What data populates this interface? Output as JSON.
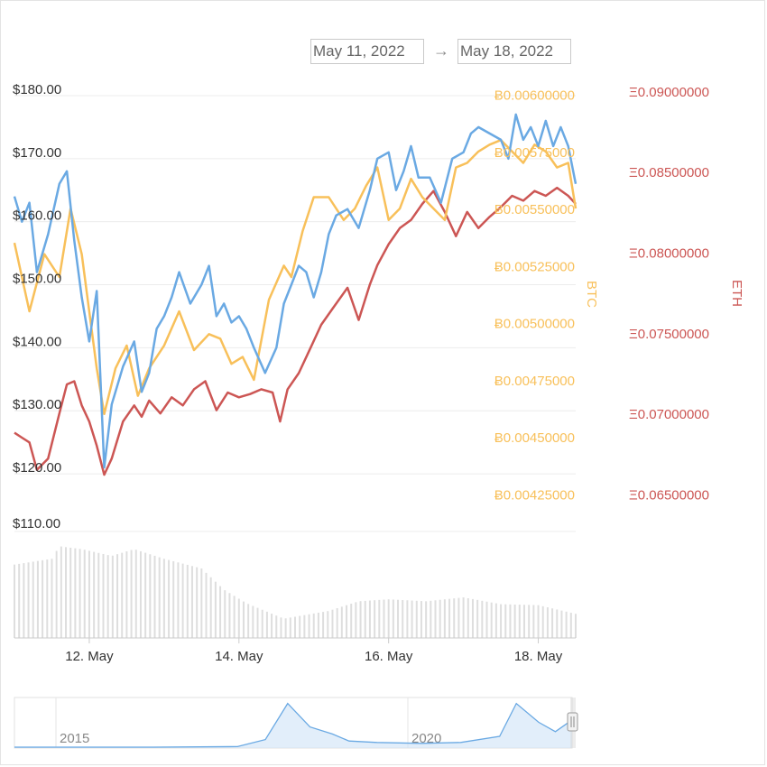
{
  "date_range": {
    "from": "May 11, 2022",
    "arrow": "→",
    "to": "May 18, 2022"
  },
  "colors": {
    "usd": "#6aa9e3",
    "btc": "#f8c05a",
    "eth": "#cc5654",
    "volume": "#dedede",
    "nav": "#cfe3f6",
    "grid": "#ececec",
    "text": "#333333"
  },
  "chart_data": {
    "type": "line",
    "title": "",
    "x": {
      "start": "2022-05-11 00:00",
      "end": "2022-05-18 12:00",
      "tick_labels": [
        "12. May",
        "14. May",
        "16. May",
        "18. May"
      ],
      "tick_days": [
        1,
        3,
        5,
        7
      ]
    },
    "axes": {
      "usd": {
        "title": "",
        "ylim": [
          115,
          182
        ],
        "ticks": [
          120,
          130,
          140,
          150,
          160,
          170,
          180
        ],
        "tick_labels": [
          "$120.00",
          "$130.00",
          "$140.00",
          "$150.00",
          "$160.00",
          "$170.00",
          "$180.00"
        ]
      },
      "btc": {
        "title": "BTC",
        "ylim": [
          0.0042,
          0.00605
        ],
        "ticks": [
          0.00425,
          0.0045,
          0.00475,
          0.005,
          0.00525,
          0.0055,
          0.00575,
          0.006
        ],
        "tick_labels": [
          "Ƀ0.00425000",
          "Ƀ0.00450000",
          "Ƀ0.00475000",
          "Ƀ0.00500000",
          "Ƀ0.00525000",
          "Ƀ0.00550000",
          "Ƀ0.00575000",
          "Ƀ0.00600000"
        ]
      },
      "eth": {
        "title": "ETH",
        "ylim": [
          0.0643,
          0.0905
        ],
        "ticks": [
          0.065,
          0.07,
          0.075,
          0.08,
          0.085,
          0.09
        ],
        "tick_labels": [
          "Ξ0.06500000",
          "Ξ0.07000000",
          "Ξ0.07500000",
          "Ξ0.08000000",
          "Ξ0.08500000",
          "Ξ0.09000000"
        ]
      }
    },
    "series": [
      {
        "name": "USD",
        "axis": "usd",
        "x": [
          0,
          0.1,
          0.2,
          0.3,
          0.45,
          0.6,
          0.7,
          0.8,
          0.9,
          1.0,
          1.1,
          1.2,
          1.3,
          1.45,
          1.6,
          1.7,
          1.8,
          1.9,
          2.0,
          2.1,
          2.2,
          2.35,
          2.5,
          2.6,
          2.7,
          2.8,
          2.9,
          3.0,
          3.1,
          3.2,
          3.35,
          3.5,
          3.6,
          3.7,
          3.8,
          3.9,
          4.0,
          4.1,
          4.2,
          4.3,
          4.45,
          4.6,
          4.75,
          4.85,
          5.0,
          5.1,
          5.2,
          5.3,
          5.4,
          5.55,
          5.7,
          5.85,
          6.0,
          6.1,
          6.2,
          6.35,
          6.5,
          6.6,
          6.7,
          6.8,
          6.9,
          7.0,
          7.1,
          7.2,
          7.3,
          7.4,
          7.5
        ],
        "values": [
          164,
          160,
          163,
          152,
          158,
          166,
          168,
          157,
          148,
          141,
          149,
          121,
          131,
          137,
          141,
          133,
          136,
          143,
          145,
          148,
          152,
          147,
          150,
          153,
          145,
          147,
          144,
          145,
          143,
          140,
          136,
          140,
          147,
          150,
          153,
          152,
          148,
          152,
          158,
          161,
          162,
          159,
          165,
          170,
          171,
          165,
          168,
          172,
          167,
          167,
          163,
          170,
          171,
          174,
          175,
          174,
          173,
          170,
          177,
          173,
          175,
          172,
          176,
          172,
          175,
          172,
          166
        ]
      },
      {
        "name": "BTC",
        "axis": "btc",
        "x": [
          0,
          0.2,
          0.4,
          0.6,
          0.75,
          0.9,
          1.0,
          1.1,
          1.2,
          1.35,
          1.5,
          1.65,
          1.8,
          2.0,
          2.2,
          2.4,
          2.6,
          2.75,
          2.9,
          3.05,
          3.2,
          3.4,
          3.6,
          3.7,
          3.85,
          4.0,
          4.2,
          4.4,
          4.55,
          4.7,
          4.85,
          5.0,
          5.15,
          5.3,
          5.45,
          5.6,
          5.75,
          5.9,
          6.05,
          6.2,
          6.35,
          6.5,
          6.65,
          6.8,
          6.95,
          7.1,
          7.25,
          7.4,
          7.5
        ],
        "values": [
          0.00535,
          0.00505,
          0.0053,
          0.0052,
          0.0055,
          0.0053,
          0.00505,
          0.0048,
          0.0046,
          0.0048,
          0.0049,
          0.00468,
          0.0048,
          0.0049,
          0.00505,
          0.00488,
          0.00495,
          0.00493,
          0.00482,
          0.00485,
          0.00475,
          0.0051,
          0.00525,
          0.0052,
          0.0054,
          0.00555,
          0.00555,
          0.00545,
          0.0055,
          0.0056,
          0.00568,
          0.00545,
          0.0055,
          0.00563,
          0.00555,
          0.0055,
          0.00545,
          0.00568,
          0.0057,
          0.00575,
          0.00578,
          0.0058,
          0.00575,
          0.0057,
          0.00578,
          0.00575,
          0.00568,
          0.0057,
          0.0055
        ]
      },
      {
        "name": "ETH",
        "axis": "eth",
        "x": [
          0,
          0.1,
          0.2,
          0.3,
          0.45,
          0.6,
          0.7,
          0.8,
          0.9,
          1.0,
          1.1,
          1.2,
          1.3,
          1.45,
          1.6,
          1.7,
          1.8,
          1.95,
          2.1,
          2.25,
          2.4,
          2.55,
          2.7,
          2.85,
          3.0,
          3.15,
          3.3,
          3.45,
          3.55,
          3.65,
          3.8,
          3.95,
          4.1,
          4.25,
          4.45,
          4.6,
          4.75,
          4.85,
          5.0,
          5.15,
          5.3,
          5.45,
          5.6,
          5.75,
          5.9,
          6.05,
          6.2,
          6.35,
          6.5,
          6.65,
          6.8,
          6.95,
          7.1,
          7.25,
          7.4,
          7.5
        ],
        "values": [
          0.0688,
          0.0685,
          0.0682,
          0.0665,
          0.0672,
          0.07,
          0.0718,
          0.072,
          0.0705,
          0.0695,
          0.068,
          0.0662,
          0.0672,
          0.0695,
          0.0705,
          0.0698,
          0.0708,
          0.07,
          0.071,
          0.0705,
          0.0715,
          0.072,
          0.0702,
          0.0713,
          0.071,
          0.0712,
          0.0715,
          0.0713,
          0.0695,
          0.0715,
          0.0725,
          0.074,
          0.0755,
          0.0765,
          0.0778,
          0.0758,
          0.078,
          0.0792,
          0.0805,
          0.0815,
          0.082,
          0.083,
          0.0838,
          0.0825,
          0.081,
          0.0825,
          0.0815,
          0.0822,
          0.0828,
          0.0835,
          0.0832,
          0.0838,
          0.0835,
          0.084,
          0.0835,
          0.083
        ]
      },
      {
        "name": "Volume",
        "axis": "volume",
        "x": [
          0,
          0.5,
          0.6,
          0.9,
          1.3,
          1.6,
          2.0,
          2.5,
          2.8,
          3.1,
          3.6,
          4.2,
          4.6,
          5.0,
          5.5,
          6.0,
          6.5,
          7.0,
          7.5
        ],
        "values": [
          0.76,
          0.82,
          0.95,
          0.92,
          0.85,
          0.92,
          0.82,
          0.72,
          0.5,
          0.36,
          0.2,
          0.28,
          0.38,
          0.4,
          0.38,
          0.42,
          0.35,
          0.34,
          0.25
        ]
      }
    ],
    "navigator": {
      "labels": [
        "2015",
        "2020"
      ],
      "points": [
        [
          0,
          0.02
        ],
        [
          0.25,
          0.02
        ],
        [
          0.4,
          0.03
        ],
        [
          0.45,
          0.18
        ],
        [
          0.49,
          0.95
        ],
        [
          0.53,
          0.45
        ],
        [
          0.57,
          0.3
        ],
        [
          0.6,
          0.15
        ],
        [
          0.65,
          0.12
        ],
        [
          0.73,
          0.1
        ],
        [
          0.8,
          0.12
        ],
        [
          0.87,
          0.25
        ],
        [
          0.9,
          0.95
        ],
        [
          0.94,
          0.55
        ],
        [
          0.97,
          0.35
        ],
        [
          1.0,
          0.6
        ]
      ]
    }
  }
}
